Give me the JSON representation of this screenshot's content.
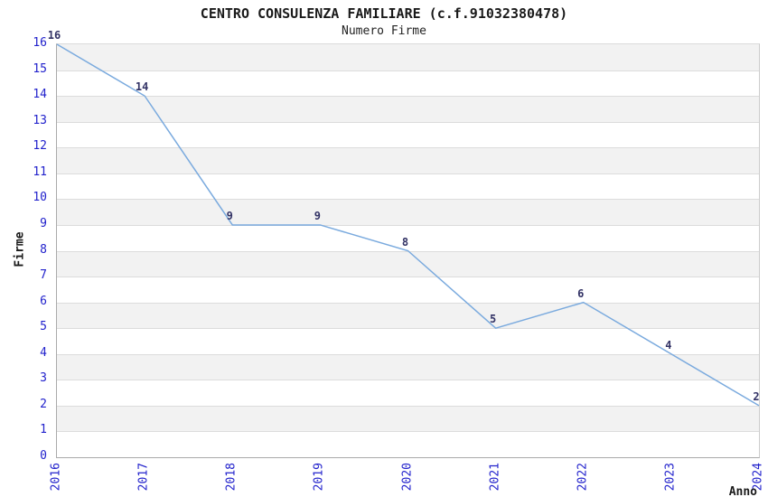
{
  "header": {
    "title": "CENTRO CONSULENZA FAMILIARE (c.f.91032380478)",
    "subtitle": "Numero Firme"
  },
  "chart_data": {
    "type": "line",
    "title": "CENTRO CONSULENZA FAMILIARE (c.f.91032380478)",
    "subtitle": "Numero Firme",
    "xlabel": "Anno",
    "ylabel": "Firme",
    "x": [
      2016,
      2017,
      2018,
      2019,
      2020,
      2021,
      2022,
      2023,
      2024
    ],
    "series": [
      {
        "name": "Firme",
        "values": [
          16,
          14,
          9,
          9,
          8,
          5,
          6,
          4,
          2
        ]
      }
    ],
    "data_labels": [
      16,
      14,
      9,
      9,
      8,
      5,
      6,
      4,
      2
    ],
    "ylim": [
      0,
      16
    ],
    "ytick_step": 1,
    "yticks": [
      0,
      1,
      2,
      3,
      4,
      5,
      6,
      7,
      8,
      9,
      10,
      11,
      12,
      13,
      14,
      15,
      16
    ],
    "grid": true,
    "banded_background": true,
    "legend": "none",
    "colors": {
      "line": "#7aaade",
      "tick_label": "#2222cc",
      "value_label": "#333366",
      "band": "#f2f2f2",
      "gridline": "#dcdcdc",
      "axis": "#aaaaaa",
      "background": "#ffffff",
      "title": "#1a1a1a"
    }
  }
}
